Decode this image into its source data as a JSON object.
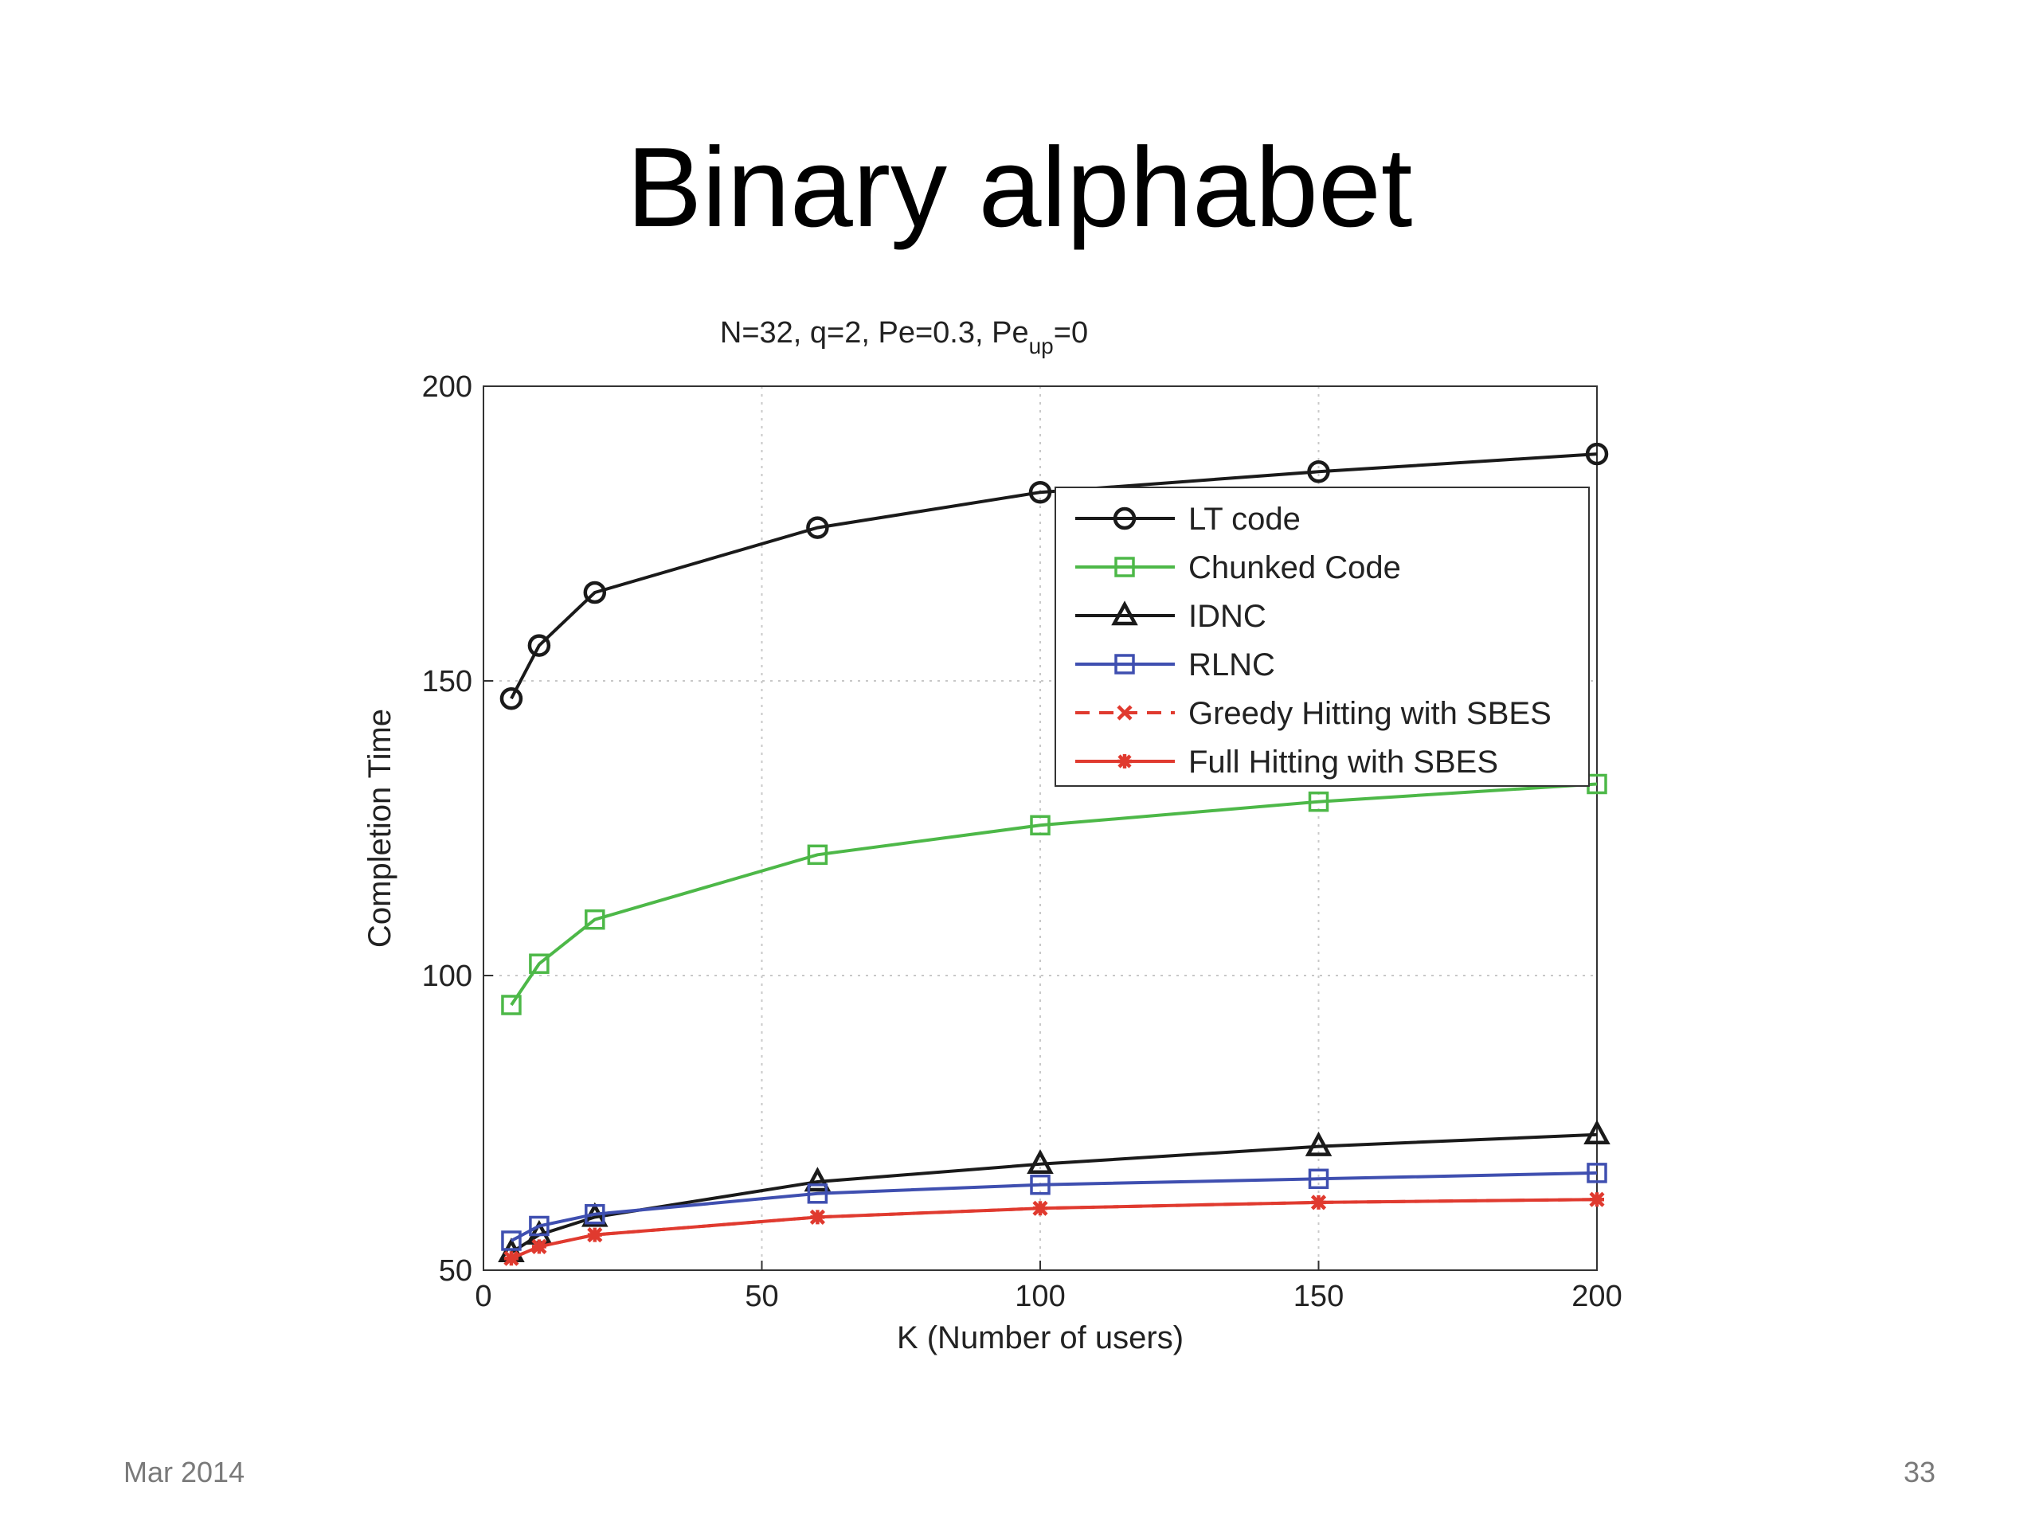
{
  "slide": {
    "title": "Binary alphabet",
    "footer_date": "Mar 2014",
    "page_number": "33"
  },
  "chart_data": {
    "type": "line",
    "title_parts": {
      "main": "N=32, q=2, Pe=0.3, Pe",
      "sub": "up",
      "tail": "=0"
    },
    "xlabel": "K (Number of users)",
    "ylabel": "Completion Time",
    "xlim": [
      0,
      200
    ],
    "ylim": [
      50,
      200
    ],
    "xticks": [
      0,
      50,
      100,
      150,
      200
    ],
    "yticks": [
      50,
      100,
      150,
      200
    ],
    "grid": true,
    "legend_position": "upper-right",
    "x": [
      5,
      10,
      20,
      60,
      100,
      150,
      200
    ],
    "series": [
      {
        "name": "LT code",
        "color": "#1a1a1a",
        "marker": "circle",
        "dash": "solid",
        "values": [
          147,
          156,
          165,
          176,
          182,
          185.5,
          188.5
        ]
      },
      {
        "name": "Chunked Code",
        "color": "#4db848",
        "marker": "square",
        "dash": "solid",
        "values": [
          95,
          102,
          109.5,
          120.5,
          125.5,
          129.5,
          132.5
        ]
      },
      {
        "name": "IDNC",
        "color": "#1a1a1a",
        "marker": "triangle",
        "dash": "solid",
        "values": [
          53,
          56,
          59,
          65,
          68,
          71,
          73
        ]
      },
      {
        "name": "RLNC",
        "color": "#3f4fb0",
        "marker": "square",
        "dash": "solid",
        "values": [
          55,
          57.5,
          59.5,
          63,
          64.5,
          65.5,
          66.5
        ]
      },
      {
        "name": "Greedy Hitting with SBES",
        "color": "#e03a2f",
        "marker": "x",
        "dash": "dashed",
        "values": [
          52,
          54,
          56,
          59,
          60.5,
          61.5,
          62
        ]
      },
      {
        "name": "Full Hitting with SBES",
        "color": "#e03a2f",
        "marker": "star",
        "dash": "solid",
        "values": [
          52,
          54,
          56,
          59,
          60.5,
          61.5,
          62
        ]
      }
    ]
  }
}
